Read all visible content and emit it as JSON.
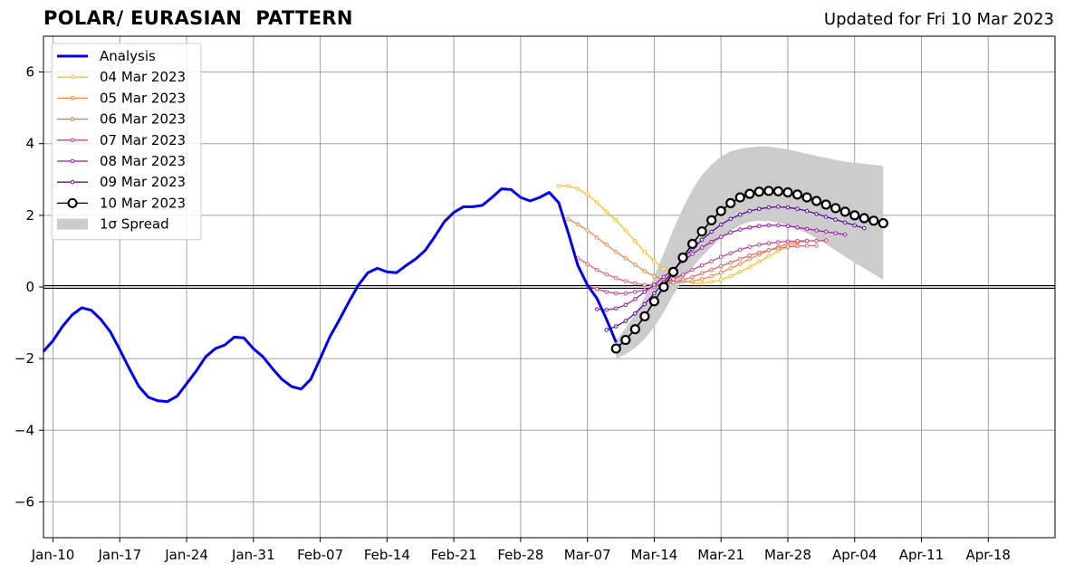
{
  "title": "POLAR/ EURASIAN  PATTERN",
  "subtitle": "Updated for Fri 10 Mar 2023",
  "chart_data": {
    "type": "line",
    "xlim": [
      "2023-01-09",
      "2023-04-25"
    ],
    "ylim": [
      -7,
      7
    ],
    "yticks": [
      -6,
      -4,
      -2,
      0,
      2,
      4,
      6
    ],
    "yticklabels": [
      "−6",
      "−4",
      "−2",
      "0",
      "2",
      "4",
      "6"
    ],
    "xticks": [
      "2023-01-10",
      "2023-01-17",
      "2023-01-24",
      "2023-01-31",
      "2023-02-07",
      "2023-02-14",
      "2023-02-21",
      "2023-02-28",
      "2023-03-07",
      "2023-03-14",
      "2023-03-21",
      "2023-03-28",
      "2023-04-04",
      "2023-04-11",
      "2023-04-18"
    ],
    "xticklabels": [
      "Jan-10",
      "Jan-17",
      "Jan-24",
      "Jan-31",
      "Feb-07",
      "Feb-14",
      "Feb-21",
      "Feb-28",
      "Mar-07",
      "Mar-14",
      "Mar-21",
      "Mar-28",
      "Apr-04",
      "Apr-11",
      "Apr-18"
    ],
    "grid": true,
    "legend_position": "upper-left",
    "analysis": {
      "name": "Analysis",
      "color": "#0000ee",
      "start": "2023-01-09",
      "values": [
        -1.8,
        -1.5,
        -1.1,
        -0.78,
        -0.58,
        -0.65,
        -0.9,
        -1.25,
        -1.75,
        -2.28,
        -2.78,
        -3.08,
        -3.18,
        -3.2,
        -3.05,
        -2.7,
        -2.35,
        -1.95,
        -1.72,
        -1.62,
        -1.4,
        -1.42,
        -1.72,
        -1.95,
        -2.28,
        -2.58,
        -2.78,
        -2.85,
        -2.58,
        -2.0,
        -1.4,
        -0.92,
        -0.42,
        0.05,
        0.4,
        0.52,
        0.42,
        0.4,
        0.6,
        0.78,
        1.02,
        1.4,
        1.82,
        2.08,
        2.24,
        2.24,
        2.28,
        2.5,
        2.74,
        2.72,
        2.5,
        2.4,
        2.5,
        2.64,
        2.35,
        1.5,
        0.6,
        0.05,
        -0.32,
        -0.9,
        -1.55
      ]
    },
    "forecasts": [
      {
        "name": "04 Mar 2023",
        "color": "#fbbf24",
        "start": "2023-03-04",
        "values": [
          2.82,
          2.82,
          2.74,
          2.58,
          2.36,
          2.1,
          1.86,
          1.58,
          1.28,
          0.98,
          0.72,
          0.5,
          0.32,
          0.18,
          0.12,
          0.1,
          0.14,
          0.2,
          0.3,
          0.42,
          0.55,
          0.7,
          0.86,
          1.0,
          1.12,
          1.22
        ]
      },
      {
        "name": "05 Mar 2023",
        "color": "#f0894e",
        "start": "2023-03-05",
        "values": [
          1.9,
          1.75,
          1.58,
          1.38,
          1.18,
          0.98,
          0.8,
          0.62,
          0.44,
          0.3,
          0.2,
          0.15,
          0.14,
          0.16,
          0.22,
          0.3,
          0.4,
          0.52,
          0.64,
          0.78,
          0.9,
          1.02,
          1.12,
          1.2,
          1.25,
          1.28
        ]
      },
      {
        "name": "06 Mar 2023",
        "color": "#e06a6f",
        "start": "2023-03-06",
        "values": [
          0.8,
          0.64,
          0.48,
          0.35,
          0.25,
          0.16,
          0.1,
          0.06,
          0.06,
          0.08,
          0.12,
          0.2,
          0.28,
          0.38,
          0.48,
          0.58,
          0.68,
          0.78,
          0.88,
          0.96,
          1.03,
          1.08,
          1.12,
          1.14,
          1.15,
          1.15
        ]
      },
      {
        "name": "07 Mar 2023",
        "color": "#c44590",
        "start": "2023-03-07",
        "values": [
          0.02,
          -0.06,
          -0.14,
          -0.18,
          -0.18,
          -0.14,
          -0.08,
          0.0,
          0.1,
          0.22,
          0.34,
          0.48,
          0.6,
          0.72,
          0.84,
          0.94,
          1.04,
          1.12,
          1.18,
          1.22,
          1.25,
          1.27,
          1.28,
          1.29,
          1.29,
          1.3
        ]
      },
      {
        "name": "08 Mar 2023",
        "color": "#9a1ea6",
        "start": "2023-03-08",
        "values": [
          -0.62,
          -0.64,
          -0.6,
          -0.5,
          -0.34,
          -0.14,
          0.06,
          0.28,
          0.5,
          0.72,
          0.92,
          1.1,
          1.26,
          1.4,
          1.52,
          1.6,
          1.66,
          1.7,
          1.72,
          1.72,
          1.7,
          1.66,
          1.62,
          1.58,
          1.54,
          1.5,
          1.46
        ]
      },
      {
        "name": "09 Mar 2023",
        "color": "#5a0fa0",
        "start": "2023-03-09",
        "values": [
          -1.2,
          -1.1,
          -0.95,
          -0.74,
          -0.48,
          -0.18,
          0.14,
          0.46,
          0.78,
          1.06,
          1.32,
          1.54,
          1.74,
          1.9,
          2.02,
          2.12,
          2.18,
          2.22,
          2.24,
          2.22,
          2.18,
          2.12,
          2.04,
          1.96,
          1.88,
          1.8,
          1.72,
          1.64
        ]
      },
      {
        "name": "10 Mar 2023",
        "color": "#000000",
        "start": "2023-03-10",
        "values": [
          -1.72,
          -1.48,
          -1.18,
          -0.82,
          -0.4,
          0.0,
          0.42,
          0.82,
          1.2,
          1.55,
          1.86,
          2.12,
          2.34,
          2.5,
          2.6,
          2.66,
          2.68,
          2.67,
          2.64,
          2.58,
          2.5,
          2.4,
          2.3,
          2.2,
          2.1,
          2.0,
          1.92,
          1.85,
          1.78
        ]
      }
    ],
    "spread": {
      "name": "1σ Spread",
      "color": "#cccccc",
      "start": "2023-03-10",
      "upper": [
        -1.5,
        -1.15,
        -0.75,
        -0.28,
        0.3,
        0.95,
        1.6,
        2.2,
        2.72,
        3.12,
        3.42,
        3.64,
        3.78,
        3.86,
        3.9,
        3.92,
        3.92,
        3.88,
        3.84,
        3.78,
        3.72,
        3.66,
        3.6,
        3.55,
        3.5,
        3.47,
        3.44,
        3.41,
        3.38
      ],
      "lower": [
        -2.0,
        -1.88,
        -1.7,
        -1.45,
        -1.12,
        -0.7,
        -0.22,
        0.2,
        0.55,
        0.85,
        1.12,
        1.36,
        1.56,
        1.72,
        1.82,
        1.85,
        1.84,
        1.8,
        1.72,
        1.62,
        1.5,
        1.36,
        1.2,
        1.02,
        0.85,
        0.68,
        0.52,
        0.36,
        0.2
      ]
    }
  }
}
